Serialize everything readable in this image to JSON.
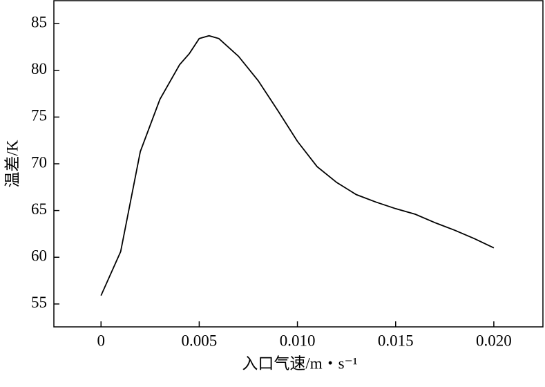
{
  "chart_data": {
    "type": "line",
    "x_label": "入口气速/m・s⁻¹",
    "y_label": "温差/K",
    "x": [
      0,
      0.001,
      0.002,
      0.003,
      0.004,
      0.0045,
      0.005,
      0.0055,
      0.006,
      0.007,
      0.008,
      0.009,
      0.01,
      0.011,
      0.012,
      0.013,
      0.014,
      0.015,
      0.016,
      0.017,
      0.018,
      0.019,
      0.02
    ],
    "series": [
      {
        "color": "#000000",
        "values": [
          55.9,
          60.6,
          71.3,
          76.9,
          80.6,
          81.8,
          83.4,
          83.7,
          83.4,
          81.5,
          78.9,
          75.7,
          72.4,
          69.7,
          68.0,
          66.7,
          65.9,
          65.2,
          64.6,
          63.7,
          62.9,
          62.0,
          61.0
        ]
      }
    ],
    "xlim": [
      -0.0024,
      0.0225
    ],
    "ylim": [
      52.55,
      87.45
    ],
    "xticks": [
      0,
      0.005,
      {
        "value": 0.01,
        "label": "0.010"
      },
      0.015,
      {
        "value": 0.02,
        "label": "0.020"
      }
    ],
    "yticks": [
      55,
      60,
      65,
      70,
      75,
      80,
      85
    ]
  }
}
